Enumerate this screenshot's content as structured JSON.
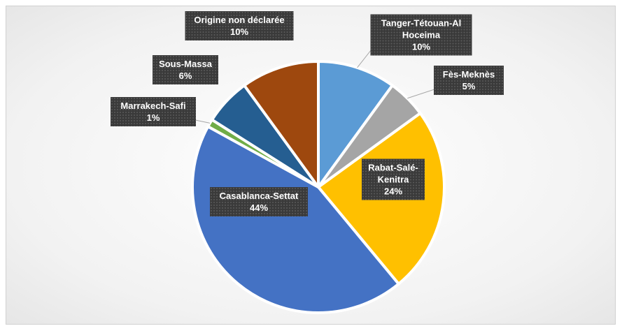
{
  "chart_data": {
    "type": "pie",
    "categories": [
      "Tanger-Tétouan-Al Hoceima",
      "Fès-Meknès",
      "Rabat-Salé-Kenitra",
      "Casablanca-Settat",
      "Marrakech-Safi",
      "Sous-Massa",
      "Origine  non déclarée"
    ],
    "values": [
      10,
      5,
      24,
      44,
      1,
      6,
      10
    ],
    "value_labels": [
      "10%",
      "5%",
      "24%",
      "44%",
      "1%",
      "6%",
      "10%"
    ],
    "colors": [
      "#5b9bd5",
      "#a5a5a5",
      "#ffc000",
      "#4472c4",
      "#70ad47",
      "#255e91",
      "#9e480e"
    ]
  }
}
